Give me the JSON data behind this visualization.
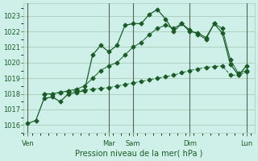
{
  "bg_color": "#cff0e8",
  "grid_color_major": "#aaccbb",
  "grid_color_minor": "#cceeee",
  "line_color": "#1a5c28",
  "title": "Pression niveau de la mer( hPa )",
  "ylim": [
    1015.5,
    1023.8
  ],
  "yticks": [
    1016,
    1017,
    1018,
    1019,
    1020,
    1021,
    1022,
    1023
  ],
  "day_labels": [
    "Ven",
    "",
    "Mar",
    "Sam",
    "",
    "Dim",
    "",
    "Lun"
  ],
  "vline_x": [
    0,
    10,
    13,
    20,
    27
  ],
  "series1_x": [
    0,
    1,
    2,
    3,
    4,
    5,
    6,
    7,
    8,
    9,
    10,
    11,
    12,
    13,
    14,
    15,
    16,
    17,
    18,
    19,
    20,
    21,
    22,
    23,
    24,
    25,
    26,
    27
  ],
  "series1_y": [
    1016.1,
    1016.3,
    1017.7,
    1017.8,
    1017.5,
    1018.0,
    1018.1,
    1018.2,
    1020.5,
    1021.1,
    1020.7,
    1021.1,
    1022.4,
    1022.5,
    1022.5,
    1023.1,
    1023.4,
    1022.8,
    1022.0,
    1022.5,
    1022.0,
    1021.9,
    1021.6,
    1022.5,
    1021.9,
    1019.9,
    1019.2,
    1019.8
  ],
  "series2_x": [
    2,
    3,
    4,
    5,
    6,
    7,
    8,
    9,
    10,
    11,
    12,
    13,
    14,
    15,
    16,
    17,
    18,
    19,
    20,
    21,
    22,
    23,
    24,
    25,
    26,
    27
  ],
  "series2_y": [
    1018.0,
    1018.0,
    1018.1,
    1018.15,
    1018.2,
    1018.25,
    1018.3,
    1018.35,
    1018.4,
    1018.5,
    1018.6,
    1018.7,
    1018.8,
    1018.9,
    1019.0,
    1019.1,
    1019.2,
    1019.35,
    1019.5,
    1019.6,
    1019.7,
    1019.75,
    1019.8,
    1019.2,
    1019.2,
    1019.4
  ],
  "series3_x": [
    2,
    3,
    4,
    5,
    6,
    7,
    8,
    9,
    10,
    11,
    12,
    13,
    14,
    15,
    16,
    17,
    18,
    19,
    20,
    21,
    22,
    23,
    24,
    25,
    26,
    27
  ],
  "series3_y": [
    1018.0,
    1018.0,
    1018.1,
    1018.2,
    1018.3,
    1018.5,
    1019.0,
    1019.5,
    1019.8,
    1020.0,
    1020.5,
    1021.0,
    1021.3,
    1021.8,
    1022.2,
    1022.4,
    1022.2,
    1022.5,
    1022.1,
    1021.8,
    1021.5,
    1022.5,
    1022.2,
    1020.2,
    1019.3,
    1019.5
  ],
  "xlim": [
    -0.5,
    28.0
  ],
  "tick_label_x": [
    0,
    10,
    13,
    20,
    27
  ],
  "tick_labels": [
    "Ven",
    "Mar",
    "Sam",
    "Dim",
    "Lun"
  ]
}
